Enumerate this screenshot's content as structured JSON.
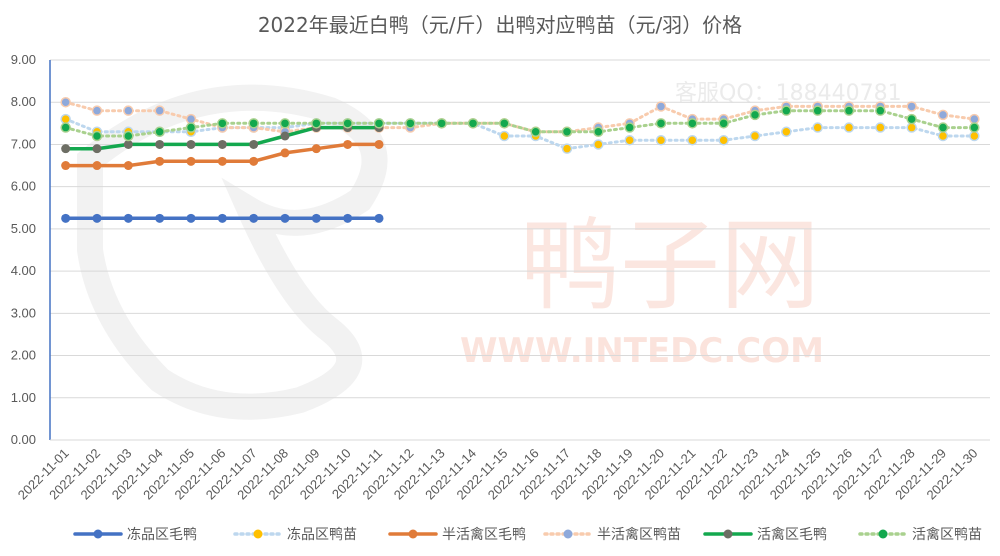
{
  "chart_data": {
    "type": "line",
    "title": "2022年最近白鸭（元/斤）出鸭对应鸭苗（元/羽）价格",
    "xlabel": "",
    "ylabel": "",
    "ylim": [
      0,
      9
    ],
    "yticks": [
      "0.00",
      "1.00",
      "2.00",
      "3.00",
      "4.00",
      "5.00",
      "6.00",
      "7.00",
      "8.00",
      "9.00"
    ],
    "categories": [
      "2022-11-01",
      "2022-11-02",
      "2022-11-03",
      "2022-11-04",
      "2022-11-05",
      "2022-11-06",
      "2022-11-07",
      "2022-11-08",
      "2022-11-09",
      "2022-11-10",
      "2022-11-11",
      "2022-11-12",
      "2022-11-13",
      "2022-11-14",
      "2022-11-15",
      "2022-11-16",
      "2022-11-17",
      "2022-11-18",
      "2022-11-19",
      "2022-11-20",
      "2022-11-21",
      "2022-11-22",
      "2022-11-23",
      "2022-11-24",
      "2022-11-25",
      "2022-11-26",
      "2022-11-27",
      "2022-11-28",
      "2022-11-29",
      "2022-11-30"
    ],
    "grid": true,
    "legend_position": "bottom",
    "series": [
      {
        "name": "冻品区毛鸭",
        "style": "solid",
        "color": "#4472C4",
        "marker_color": "#4472C4",
        "values": [
          5.25,
          5.25,
          5.25,
          5.25,
          5.25,
          5.25,
          5.25,
          5.25,
          5.25,
          5.25,
          5.25,
          null,
          null,
          null,
          null,
          null,
          null,
          null,
          null,
          null,
          null,
          null,
          null,
          null,
          null,
          null,
          null,
          null,
          null,
          null
        ]
      },
      {
        "name": "冻品区鸭苗",
        "style": "dotted",
        "color": "#BDD7EE",
        "marker_color": "#FFC000",
        "values": [
          7.6,
          7.3,
          7.3,
          7.3,
          7.3,
          7.4,
          7.4,
          7.4,
          7.5,
          7.5,
          7.5,
          7.5,
          7.5,
          7.5,
          7.2,
          7.2,
          6.9,
          7.0,
          7.1,
          7.1,
          7.1,
          7.1,
          7.2,
          7.3,
          7.4,
          7.4,
          7.4,
          7.4,
          7.2,
          7.2
        ]
      },
      {
        "name": "半活禽区毛鸭",
        "style": "solid",
        "color": "#E07B39",
        "marker_color": "#E07B39",
        "values": [
          6.5,
          6.5,
          6.5,
          6.6,
          6.6,
          6.6,
          6.6,
          6.8,
          6.9,
          7.0,
          7.0,
          null,
          null,
          null,
          null,
          null,
          null,
          null,
          null,
          null,
          null,
          null,
          null,
          null,
          null,
          null,
          null,
          null,
          null,
          null
        ]
      },
      {
        "name": "半活禽区鸭苗",
        "style": "dotted",
        "color": "#F8CBAD",
        "marker_color": "#8EA9DB",
        "values": [
          8.0,
          7.8,
          7.8,
          7.8,
          7.6,
          7.4,
          7.4,
          7.3,
          7.4,
          7.4,
          7.4,
          7.4,
          7.5,
          7.5,
          7.5,
          7.3,
          7.3,
          7.4,
          7.5,
          7.9,
          7.6,
          7.6,
          7.8,
          7.9,
          7.9,
          7.9,
          7.9,
          7.9,
          7.7,
          7.6
        ]
      },
      {
        "name": "活禽区毛鸭",
        "style": "solid",
        "color": "#13A84E",
        "marker_color": "#6D6E64",
        "values": [
          6.9,
          6.9,
          7.0,
          7.0,
          7.0,
          7.0,
          7.0,
          7.2,
          7.4,
          7.4,
          7.4,
          null,
          null,
          null,
          null,
          null,
          null,
          null,
          null,
          null,
          null,
          null,
          null,
          null,
          null,
          null,
          null,
          null,
          null,
          null
        ]
      },
      {
        "name": "活禽区鸭苗",
        "style": "dotted",
        "color": "#A9D18E",
        "marker_color": "#13A84E",
        "values": [
          7.4,
          7.2,
          7.2,
          7.3,
          7.4,
          7.5,
          7.5,
          7.5,
          7.5,
          7.5,
          7.5,
          7.5,
          7.5,
          7.5,
          7.5,
          7.3,
          7.3,
          7.3,
          7.4,
          7.5,
          7.5,
          7.5,
          7.7,
          7.8,
          7.8,
          7.8,
          7.8,
          7.6,
          7.4,
          7.4
        ]
      }
    ]
  },
  "watermark": {
    "service_text": "客服QQ：188440781",
    "brand_text": "鸭子网",
    "url_text": "WWW.INTEDC.COM"
  }
}
